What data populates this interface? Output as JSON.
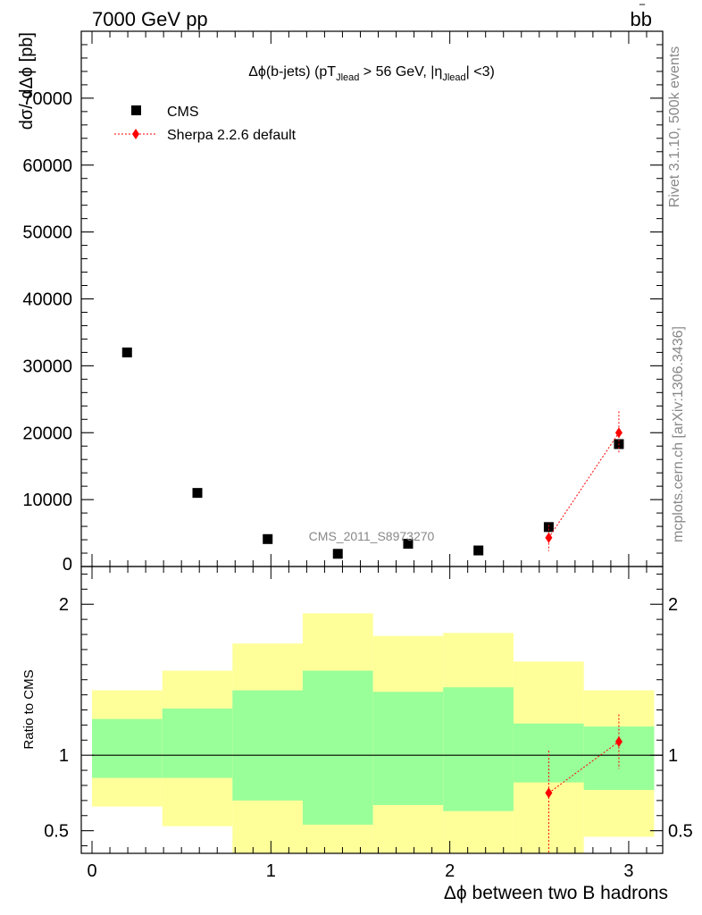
{
  "header": {
    "energy_label": "7000 GeV pp",
    "process_label": "bb",
    "process_bar": "‾"
  },
  "side": {
    "rivet": "Rivet 3.1.10,  500k events",
    "mcplots": "mcplots.cern.ch [arXiv:1306.3436]"
  },
  "chart_data": [
    {
      "type": "scatter",
      "title": "Δϕ(b-jets) (pT",
      "title_parts": {
        "a": "Δϕ(b-jets) (pT",
        "sub1": "Jlead",
        "b": " >  56 GeV, |η",
        "sub2": "Jlead",
        "c": "| <3)"
      },
      "ylabel": "dσ/ dΔϕ [pb]",
      "xlabel": "",
      "watermark": "CMS_2011_S8973270",
      "ylim": [
        0,
        80000
      ],
      "xlim": [
        -0.06,
        3.19
      ],
      "yticks": [
        {
          "v": 0,
          "label": "0"
        },
        {
          "v": 10000,
          "label": "10000"
        },
        {
          "v": 20000,
          "label": "20000"
        },
        {
          "v": 30000,
          "label": "30000"
        },
        {
          "v": 40000,
          "label": "40000"
        },
        {
          "v": 50000,
          "label": "50000"
        },
        {
          "v": 60000,
          "label": "60000"
        },
        {
          "v": 70000,
          "label": "70000"
        }
      ],
      "legend_position": "top-left",
      "series": [
        {
          "name": "CMS",
          "marker": "square",
          "color": "#000000",
          "x": [
            0.196,
            0.589,
            0.982,
            1.374,
            1.767,
            2.16,
            2.553,
            2.945
          ],
          "y": [
            32000,
            11000,
            4100,
            1900,
            3400,
            2400,
            5900,
            18300
          ]
        },
        {
          "name": "Sherpa 2.2.6 default",
          "marker": "diamond",
          "color": "#ff0000",
          "x": [
            2.553,
            2.945
          ],
          "y": [
            4300,
            20000
          ],
          "y_err_low": [
            2000,
            3200
          ],
          "y_err_high": [
            1900,
            3200
          ]
        }
      ]
    },
    {
      "type": "scatter",
      "title": "",
      "ylabel": "Ratio to CMS",
      "xlabel": "Δϕ between two B hadrons",
      "ylim": [
        0.35,
        2.25
      ],
      "xlim": [
        -0.06,
        3.19
      ],
      "yticks": [
        {
          "v": 0.5,
          "label": "0.5"
        },
        {
          "v": 1,
          "label": "1"
        },
        {
          "v": 2,
          "label": "2"
        }
      ],
      "xticks": [
        {
          "v": 0,
          "label": "0"
        },
        {
          "v": 1,
          "label": "1"
        },
        {
          "v": 2,
          "label": "2"
        },
        {
          "v": 3,
          "label": "3"
        }
      ],
      "bands": {
        "bin_edges": [
          0,
          0.393,
          0.785,
          1.178,
          1.571,
          1.963,
          2.356,
          2.749,
          3.142
        ],
        "yellow_low": [
          0.66,
          0.53,
          0.35,
          0.35,
          0.35,
          0.35,
          0.35,
          0.46,
          0.68
        ],
        "yellow_high": [
          1.43,
          1.56,
          1.74,
          1.94,
          1.79,
          1.81,
          1.62,
          1.43,
          1.42
        ],
        "green_low": [
          0.85,
          0.85,
          0.7,
          0.54,
          0.67,
          0.63,
          0.82,
          0.77,
          0.86
        ],
        "green_high": [
          1.24,
          1.31,
          1.43,
          1.56,
          1.42,
          1.45,
          1.21,
          1.19,
          1.24
        ],
        "yellow_color": "#ffff99",
        "green_color": "#99ff99"
      },
      "reference_line": 1,
      "series": [
        {
          "name": "Sherpa 2.2.6 default",
          "marker": "diamond",
          "color": "#ff0000",
          "x": [
            2.553,
            2.945
          ],
          "y": [
            0.75,
            1.09
          ],
          "y_err_low": [
            0.4,
            0.18
          ],
          "y_err_high": [
            0.28,
            0.18
          ]
        }
      ]
    }
  ]
}
